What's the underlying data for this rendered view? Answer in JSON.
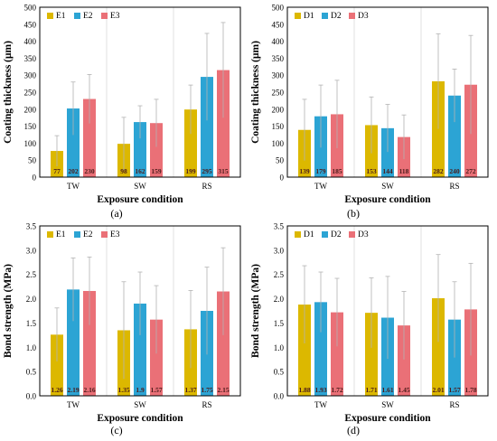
{
  "colors": {
    "series": [
      "#dcb800",
      "#2ca4d4",
      "#ea7077"
    ],
    "grid": "#d9d9d9",
    "frame": "#000000",
    "error_bar": "#b3b3b3"
  },
  "chart_data": [
    {
      "type": "bar",
      "panel": "(a)",
      "xlabel": "Exposure condition",
      "ylabel": "Coating thickness (μm)",
      "ylim": [
        0,
        500
      ],
      "ytick_step": 50,
      "categories": [
        "TW",
        "SW",
        "RS"
      ],
      "series": [
        {
          "name": "E1",
          "values": [
            77,
            98,
            199
          ],
          "error": [
            45,
            78,
            72
          ]
        },
        {
          "name": "E2",
          "values": [
            202,
            162,
            295
          ],
          "error": [
            78,
            48,
            128
          ]
        },
        {
          "name": "E3",
          "values": [
            230,
            159,
            315
          ],
          "error": [
            72,
            70,
            140
          ]
        }
      ],
      "legend": "top-left",
      "grid": "vertical separators"
    },
    {
      "type": "bar",
      "panel": "(b)",
      "xlabel": "Exposure condition",
      "ylabel": "Coating thickness (μm)",
      "ylim": [
        0,
        500
      ],
      "ytick_step": 50,
      "categories": [
        "TW",
        "SW",
        "RS"
      ],
      "series": [
        {
          "name": "D1",
          "values": [
            139,
            153,
            282
          ],
          "error": [
            90,
            83,
            140
          ]
        },
        {
          "name": "D2",
          "values": [
            179,
            144,
            240
          ],
          "error": [
            92,
            70,
            78
          ]
        },
        {
          "name": "D3",
          "values": [
            185,
            118,
            272
          ],
          "error": [
            100,
            65,
            145
          ]
        }
      ],
      "legend": "top-left",
      "grid": "vertical separators"
    },
    {
      "type": "bar",
      "panel": "(c)",
      "xlabel": "Exposure condition",
      "ylabel": "Bond strength (MPa)",
      "ylim": [
        0,
        3.5
      ],
      "ytick_step": 0.5,
      "categories": [
        "TW",
        "SW",
        "RS"
      ],
      "series": [
        {
          "name": "E1",
          "values": [
            1.26,
            1.35,
            1.37
          ],
          "error": [
            0.55,
            1.0,
            0.8
          ]
        },
        {
          "name": "E2",
          "values": [
            2.19,
            1.9,
            1.75
          ],
          "error": [
            0.65,
            0.65,
            0.9
          ]
        },
        {
          "name": "E3",
          "values": [
            2.16,
            1.57,
            2.15
          ],
          "error": [
            0.7,
            0.7,
            0.9
          ]
        }
      ],
      "legend": "top-left",
      "grid": "vertical separators"
    },
    {
      "type": "bar",
      "panel": "(d)",
      "xlabel": "Exposure condition",
      "ylabel": "Bond strength (MPa)",
      "ylim": [
        0,
        3.5
      ],
      "ytick_step": 0.5,
      "categories": [
        "TW",
        "SW",
        "RS"
      ],
      "series": [
        {
          "name": "D1",
          "values": [
            1.88,
            1.71,
            2.01
          ],
          "error": [
            0.8,
            0.72,
            0.9
          ]
        },
        {
          "name": "D2",
          "values": [
            1.93,
            1.61,
            1.57
          ],
          "error": [
            0.62,
            0.85,
            0.78
          ]
        },
        {
          "name": "D3",
          "values": [
            1.72,
            1.45,
            1.78
          ],
          "error": [
            0.7,
            0.7,
            0.95
          ]
        }
      ],
      "legend": "top-left",
      "grid": "vertical separators"
    }
  ]
}
